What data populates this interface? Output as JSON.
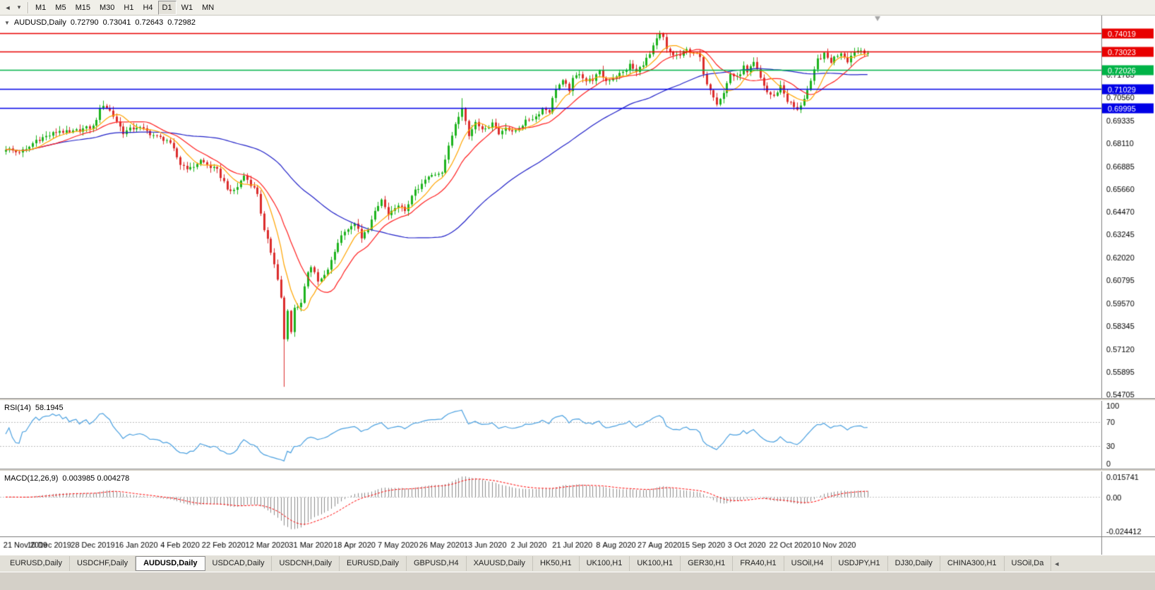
{
  "toolbar": {
    "left_icons": [
      {
        "name": "chart-nav-icon",
        "glyph": "◄"
      },
      {
        "name": "toolbar-dropdown-icon",
        "glyph": "▾"
      }
    ],
    "timeframes": [
      "M1",
      "M5",
      "M15",
      "M30",
      "H1",
      "H4",
      "D1",
      "W1",
      "MN"
    ],
    "active_timeframe": "D1"
  },
  "chart": {
    "collapse_icon": "▼",
    "title": {
      "symbol": "AUDUSD,Daily",
      "open": "0.72790",
      "high": "0.73041",
      "low": "0.72643",
      "close": "0.72982"
    }
  },
  "rsi": {
    "label": "RSI(14)",
    "value": "58.1945",
    "axis": [
      "100",
      "70",
      "30",
      "0"
    ]
  },
  "macd": {
    "label": "MACD(12,26,9)",
    "values": "0.003985 0.004278",
    "axis_top": "0.015741",
    "axis_zero": "0.00",
    "axis_bottom": "-0.024412"
  },
  "tabs": {
    "items": [
      "EURUSD,Daily",
      "USDCHF,Daily",
      "AUDUSD,Daily",
      "USDCAD,Daily",
      "USDCNH,Daily",
      "EURUSD,Daily",
      "GBPUSD,H4",
      "XAUUSD,Daily",
      "HK50,H1",
      "UK100,H1",
      "UK100,H1",
      "GER30,H1",
      "FRA40,H1",
      "USOil,H4",
      "USDJPY,H1",
      "DJ30,Daily",
      "CHINA300,H1",
      "USOil,Da"
    ],
    "active_index": 2,
    "scroll_icon": "◄"
  },
  "chart_data": {
    "type": "candlestick",
    "symbol": "AUDUSD",
    "timeframe": "Daily",
    "current_ohlc": {
      "open": 0.7279,
      "high": 0.73041,
      "low": 0.72643,
      "close": 0.72982
    },
    "y_range": [
      0.545,
      0.7495
    ],
    "y_ticks": [
      "0.71785",
      "0.70560",
      "0.69335",
      "0.68110",
      "0.66885",
      "0.65660",
      "0.64470",
      "0.63245",
      "0.62020",
      "0.60795",
      "0.59570",
      "0.58345",
      "0.57120",
      "0.55895",
      "0.54705"
    ],
    "levels": [
      {
        "price": 0.74019,
        "label": "0.74019",
        "color": "#e80000"
      },
      {
        "price": 0.73023,
        "label": "0.73023",
        "color": "#e80000"
      },
      {
        "price": 0.72026,
        "label": "0.72026",
        "color": "#00b347"
      },
      {
        "price": 0.71029,
        "label": "0.71029",
        "color": "#0000e6"
      },
      {
        "price": 0.69995,
        "label": "0.69995",
        "color": "#0000e6"
      }
    ],
    "x_labels": [
      "21 Nov 2019",
      "10 Dec 2019",
      "28 Dec 2019",
      "16 Jan 2020",
      "4 Feb 2020",
      "22 Feb 2020",
      "12 Mar 2020",
      "31 Mar 2020",
      "18 Apr 2020",
      "7 May 2020",
      "26 May 2020",
      "13 Jun 2020",
      "2 Jul 2020",
      "21 Jul 2020",
      "8 Aug 2020",
      "27 Aug 2020",
      "15 Sep 2020",
      "3 Oct 2020",
      "22 Oct 2020",
      "10 Nov 2020"
    ],
    "candles_per_label": 13,
    "num_candles": 258,
    "candle_step": 4.75,
    "candle_x0": 8,
    "close_anchors": [
      [
        0,
        0.6785
      ],
      [
        3,
        0.6765
      ],
      [
        6,
        0.6775
      ],
      [
        9,
        0.683
      ],
      [
        13,
        0.6855
      ],
      [
        16,
        0.688
      ],
      [
        19,
        0.6865
      ],
      [
        22,
        0.6885
      ],
      [
        26,
        0.69
      ],
      [
        28,
        0.699
      ],
      [
        29,
        0.702
      ],
      [
        31,
        0.6985
      ],
      [
        33,
        0.693
      ],
      [
        35,
        0.687
      ],
      [
        39,
        0.69
      ],
      [
        42,
        0.6875
      ],
      [
        45,
        0.6845
      ],
      [
        48,
        0.683
      ],
      [
        50,
        0.6775
      ],
      [
        52,
        0.67
      ],
      [
        55,
        0.6675
      ],
      [
        58,
        0.672
      ],
      [
        61,
        0.6685
      ],
      [
        63,
        0.6665
      ],
      [
        65,
        0.6605
      ],
      [
        67,
        0.6545
      ],
      [
        69,
        0.658
      ],
      [
        71,
        0.664
      ],
      [
        73,
        0.6595
      ],
      [
        75,
        0.6545
      ],
      [
        77,
        0.634
      ],
      [
        78,
        0.629
      ],
      [
        80,
        0.6175
      ],
      [
        82,
        0.599
      ],
      [
        83,
        0.576
      ],
      [
        84,
        0.591
      ],
      [
        85,
        0.58
      ],
      [
        86,
        0.593
      ],
      [
        88,
        0.596
      ],
      [
        90,
        0.613
      ],
      [
        91,
        0.6155
      ],
      [
        93,
        0.607
      ],
      [
        95,
        0.61
      ],
      [
        97,
        0.618
      ],
      [
        99,
        0.6285
      ],
      [
        101,
        0.635
      ],
      [
        103,
        0.636
      ],
      [
        104,
        0.639
      ],
      [
        106,
        0.63
      ],
      [
        108,
        0.636
      ],
      [
        110,
        0.644
      ],
      [
        112,
        0.651
      ],
      [
        114,
        0.6425
      ],
      [
        116,
        0.6455
      ],
      [
        117,
        0.649
      ],
      [
        119,
        0.644
      ],
      [
        121,
        0.654
      ],
      [
        123,
        0.6565
      ],
      [
        125,
        0.6615
      ],
      [
        127,
        0.664
      ],
      [
        130,
        0.6665
      ],
      [
        132,
        0.679
      ],
      [
        134,
        0.692
      ],
      [
        136,
        0.701
      ],
      [
        138,
        0.685
      ],
      [
        140,
        0.693
      ],
      [
        143,
        0.688
      ],
      [
        145,
        0.693
      ],
      [
        147,
        0.686
      ],
      [
        149,
        0.6905
      ],
      [
        151,
        0.6865
      ],
      [
        153,
        0.69
      ],
      [
        156,
        0.694
      ],
      [
        158,
        0.6955
      ],
      [
        160,
        0.7
      ],
      [
        162,
        0.6985
      ],
      [
        164,
        0.711
      ],
      [
        166,
        0.714
      ],
      [
        168,
        0.71
      ],
      [
        169,
        0.715
      ],
      [
        171,
        0.719
      ],
      [
        173,
        0.7145
      ],
      [
        175,
        0.7155
      ],
      [
        177,
        0.719
      ],
      [
        179,
        0.7145
      ],
      [
        182,
        0.7175
      ],
      [
        184,
        0.719
      ],
      [
        186,
        0.723
      ],
      [
        188,
        0.719
      ],
      [
        190,
        0.724
      ],
      [
        192,
        0.7285
      ],
      [
        194,
        0.7365
      ],
      [
        195,
        0.739
      ],
      [
        196,
        0.7375
      ],
      [
        197,
        0.731
      ],
      [
        199,
        0.7285
      ],
      [
        201,
        0.728
      ],
      [
        203,
        0.731
      ],
      [
        205,
        0.73
      ],
      [
        207,
        0.727
      ],
      [
        208,
        0.717
      ],
      [
        210,
        0.7105
      ],
      [
        212,
        0.703
      ],
      [
        214,
        0.708
      ],
      [
        216,
        0.7185
      ],
      [
        218,
        0.716
      ],
      [
        220,
        0.722
      ],
      [
        221,
        0.7185
      ],
      [
        223,
        0.724
      ],
      [
        225,
        0.716
      ],
      [
        227,
        0.7085
      ],
      [
        229,
        0.706
      ],
      [
        231,
        0.712
      ],
      [
        233,
        0.704
      ],
      [
        234,
        0.7025
      ],
      [
        236,
        0.6985
      ],
      [
        238,
        0.7055
      ],
      [
        240,
        0.7135
      ],
      [
        242,
        0.726
      ],
      [
        244,
        0.7285
      ],
      [
        246,
        0.725
      ],
      [
        247,
        0.727
      ],
      [
        249,
        0.73
      ],
      [
        251,
        0.7255
      ],
      [
        253,
        0.7305
      ],
      [
        255,
        0.731
      ],
      [
        257,
        0.7298
      ]
    ],
    "high_spikes": {
      "29": 0.704,
      "136": 0.7053,
      "195": 0.7414
    },
    "low_spikes": {
      "83": 0.551
    },
    "ma_periods": {
      "fast": 8,
      "med": 16,
      "slow": 55
    },
    "rsi_period": 14,
    "rsi_levels": [
      70,
      30
    ],
    "macd_params": {
      "fast": 12,
      "slow": 26,
      "signal": 9
    },
    "macd_range": [
      -0.0244,
      0.0157
    ],
    "colors": {
      "bull": "#1db31d",
      "bear": "#db2c2c",
      "ma_fast": "#ffa500",
      "ma_med": "#ff2020",
      "ma_slow": "#2020c8",
      "rsi": "#4aa0e0",
      "rsi_level": "#bbbbbb",
      "macd_hist": "#8c8c8c",
      "macd_signal": "#ff0000",
      "axis_line": "#808080",
      "shift_marker": "#a6a6a6"
    }
  }
}
